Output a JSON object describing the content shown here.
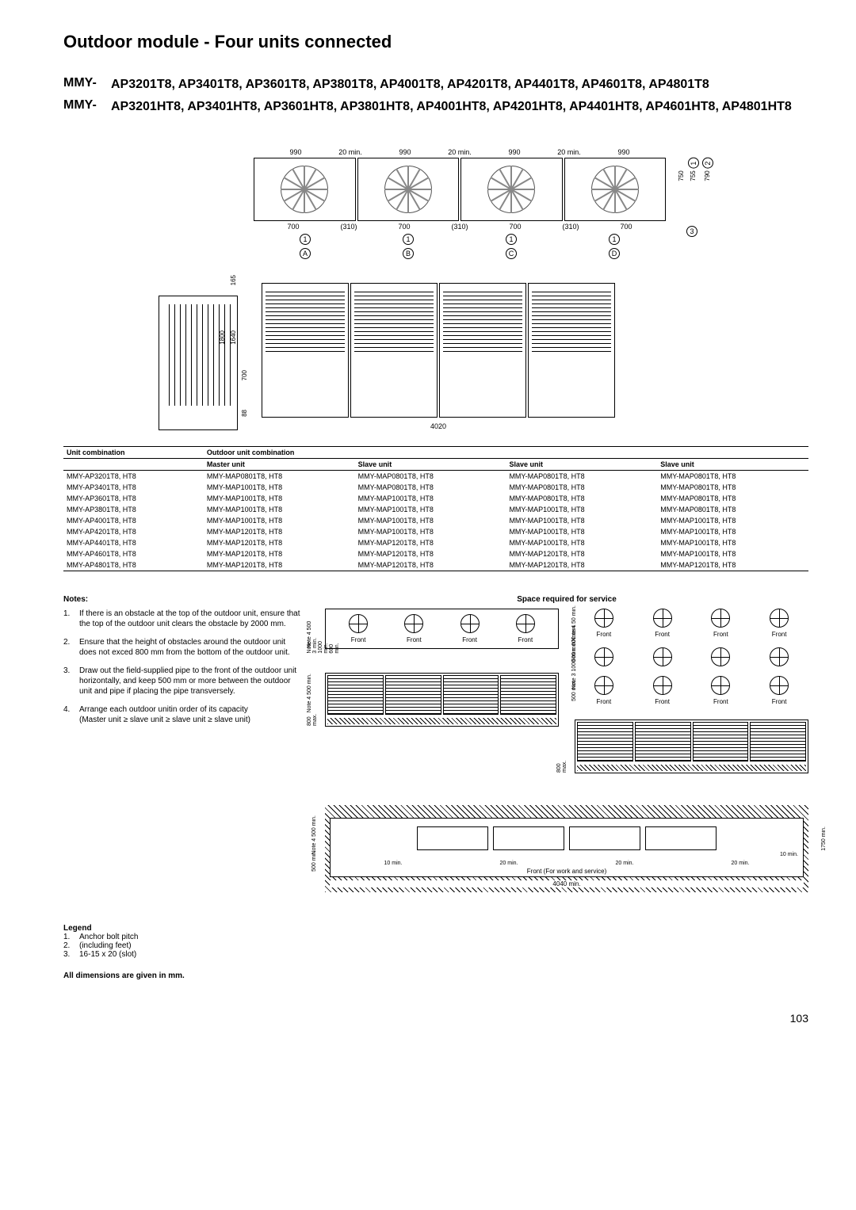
{
  "page_title": "Outdoor module - Four units connected",
  "model_groups": [
    {
      "prefix": "MMY-",
      "models": "AP3201T8,  AP3401T8,  AP3601T8,  AP3801T8,  AP4001T8,  AP4201T8, AP4401T8,  AP4601T8,  AP4801T8"
    },
    {
      "prefix": "MMY-",
      "models": "AP3201HT8,  AP3401HT8,  AP3601HT8,  AP3801HT8,  AP4001HT8,  AP4201HT8,  AP4401HT8,  AP4601HT8,  AP4801HT8"
    }
  ],
  "diagram": {
    "top_dims": [
      "990",
      "20 min.",
      "990",
      "20 min.",
      "990",
      "20 min.",
      "990"
    ],
    "side_dims": {
      "h1": "750",
      "h2": "755",
      "h3": "790",
      "c1": "1",
      "c2": "2",
      "c3": "3"
    },
    "bottom_dims": [
      "700",
      "(310)",
      "700",
      "(310)",
      "700",
      "(310)",
      "700"
    ],
    "unit_circled": [
      "1",
      "1",
      "1",
      "1"
    ],
    "unit_letters": [
      "A",
      "B",
      "C",
      "D"
    ],
    "front_heights": {
      "h_total": "1800",
      "h_inner": "1640",
      "h_grille": "700",
      "h_base": "88",
      "h_165": "165"
    },
    "total_width": "4020"
  },
  "table": {
    "header_main": "Unit combination",
    "header_sub": "Outdoor unit combination",
    "columns": [
      "",
      "Master unit",
      "Slave unit",
      "Slave unit",
      "Slave unit"
    ],
    "rows": [
      [
        "MMY-AP3201T8, HT8",
        "MMY-MAP0801T8, HT8",
        "MMY-MAP0801T8, HT8",
        "MMY-MAP0801T8, HT8",
        "MMY-MAP0801T8, HT8"
      ],
      [
        "MMY-AP3401T8, HT8",
        "MMY-MAP1001T8, HT8",
        "MMY-MAP0801T8, HT8",
        "MMY-MAP0801T8, HT8",
        "MMY-MAP0801T8, HT8"
      ],
      [
        "MMY-AP3601T8, HT8",
        "MMY-MAP1001T8, HT8",
        "MMY-MAP1001T8, HT8",
        "MMY-MAP0801T8, HT8",
        "MMY-MAP0801T8, HT8"
      ],
      [
        "MMY-AP3801T8, HT8",
        "MMY-MAP1001T8, HT8",
        "MMY-MAP1001T8, HT8",
        "MMY-MAP1001T8, HT8",
        "MMY-MAP0801T8, HT8"
      ],
      [
        "MMY-AP4001T8, HT8",
        "MMY-MAP1001T8, HT8",
        "MMY-MAP1001T8, HT8",
        "MMY-MAP1001T8, HT8",
        "MMY-MAP1001T8, HT8"
      ],
      [
        "MMY-AP4201T8, HT8",
        "MMY-MAP1201T8, HT8",
        "MMY-MAP1001T8, HT8",
        "MMY-MAP1001T8, HT8",
        "MMY-MAP1001T8, HT8"
      ],
      [
        "MMY-AP4401T8, HT8",
        "MMY-MAP1201T8, HT8",
        "MMY-MAP1201T8, HT8",
        "MMY-MAP1001T8, HT8",
        "MMY-MAP1001T8, HT8"
      ],
      [
        "MMY-AP4601T8, HT8",
        "MMY-MAP1201T8, HT8",
        "MMY-MAP1201T8, HT8",
        "MMY-MAP1201T8, HT8",
        "MMY-MAP1001T8, HT8"
      ],
      [
        "MMY-AP4801T8, HT8",
        "MMY-MAP1201T8, HT8",
        "MMY-MAP1201T8, HT8",
        "MMY-MAP1201T8, HT8",
        "MMY-MAP1201T8, HT8"
      ]
    ]
  },
  "notes": {
    "title": "Notes:",
    "items": [
      "If there is an obstacle at the top of the outdoor unit, ensure that the top of the outdoor unit clears the obstacle by 2000 mm.",
      "Ensure that the height of obstacles around the outdoor unit does not exced 800 mm from the bottom of the outdoor unit.",
      "Draw out the field-supplied pipe to the front of the outdoor unit horizontally, and keep 500 mm or more between the outdoor unit and pipe if placing the pipe transversely.",
      "Arrange each outdoor unitin order of its capacity\n(Master unit ≥ slave unit ≥ slave unit ≥ slave unit)"
    ]
  },
  "service": {
    "title": "Space required for service",
    "front": "Front",
    "labels": {
      "note4_500": "Note 4\n500 min.",
      "note3_1000_600": "Note 3\n1000 min.\n600 min.",
      "note4_50": "Note 4\n50 min.",
      "v600": "600 min.",
      "v500": "500 min.",
      "v800": "800 max.",
      "v1750": "1750 min."
    },
    "bottom": {
      "dims": [
        "10 min.",
        "20 min.",
        "20 min.",
        "20 min."
      ],
      "right": "10 min.",
      "label": "Front (For work and service)",
      "width": "4040 min.",
      "left_500": "500 min."
    }
  },
  "legend": {
    "title": "Legend",
    "items": [
      "Anchor bolt pitch",
      "(including feet)",
      "16-15 x 20 (slot)"
    ]
  },
  "dims_note": "All dimensions are given in mm.",
  "page_number": "103"
}
